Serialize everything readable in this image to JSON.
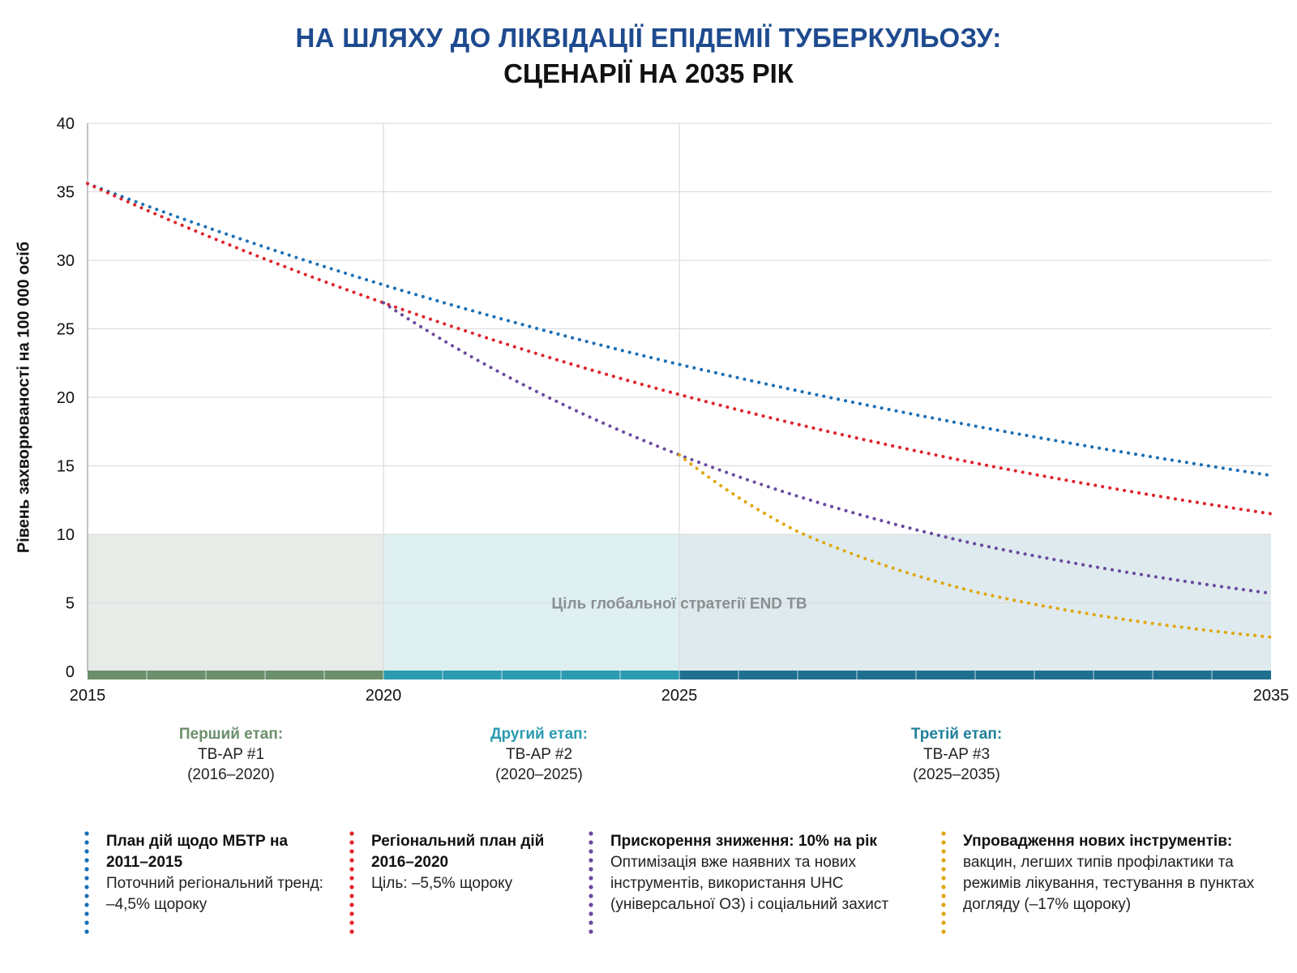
{
  "title": {
    "line1": "НА ШЛЯХУ ДО ЛІКВІДАЦІЇ ЕПІДЕМІЇ ТУБЕРКУЛЬОЗУ:",
    "line2": "СЦЕНАРІЇ НА 2035 РІК"
  },
  "colors": {
    "blue": "#1a6fb5",
    "red": "#e0232b",
    "purple": "#6a4a9e",
    "gold": "#e0a60f",
    "phase1": "#6b8f6b",
    "phase2": "#2a9bb0",
    "phase3": "#1f6f8f",
    "title_blue": "#1e4b8f"
  },
  "chart_data": {
    "type": "line",
    "ylabel": "Рівень захворюваності на 100 000 осіб",
    "xlabel": "",
    "xlim": [
      2015,
      2035
    ],
    "ylim": [
      0,
      40
    ],
    "x_ticks": [
      2015,
      2020,
      2025,
      2035
    ],
    "y_ticks": [
      0,
      5,
      10,
      15,
      20,
      25,
      30,
      35,
      40
    ],
    "grid": true,
    "target_band": {
      "y_from": 0,
      "y_to": 10,
      "label": "Ціль глобальної стратегії END TB"
    },
    "series": [
      {
        "name": "План дій щодо МБТР на 2011–2015",
        "color_key": "blue",
        "x": [
          2015,
          2020,
          2025,
          2030,
          2035
        ],
        "y": [
          35.6,
          28.2,
          22.4,
          17.9,
          14.3
        ]
      },
      {
        "name": "Регіональний план дій 2016–2020",
        "color_key": "red",
        "x": [
          2015,
          2020,
          2025,
          2030,
          2035
        ],
        "y": [
          35.6,
          26.9,
          20.2,
          15.2,
          11.5
        ]
      },
      {
        "name": "Прискорення зниження: 10% на рік",
        "color_key": "purple",
        "x": [
          2020,
          2025,
          2030,
          2035
        ],
        "y": [
          26.9,
          15.8,
          9.3,
          5.7
        ]
      },
      {
        "name": "Упровадження нових інструментів",
        "color_key": "gold",
        "x": [
          2025,
          2027,
          2030,
          2033,
          2035
        ],
        "y": [
          15.8,
          10.2,
          5.8,
          3.5,
          2.5
        ]
      }
    ]
  },
  "phases": [
    {
      "title": "Перший етап:",
      "plan": "TB-AP #1",
      "years": "(2016–2020)",
      "color_key": "phase1"
    },
    {
      "title": "Другий етап:",
      "plan": "TB-AP #2",
      "years": "(2020–2025)",
      "color_key": "phase2"
    },
    {
      "title": "Третій етап:",
      "plan": "TB-AP #3",
      "years": "(2025–2035)",
      "color_key": "phase3"
    }
  ],
  "legend": [
    {
      "title": "План дій щодо МБТР на 2011–2015",
      "text": "Поточний регіональний тренд: –4,5% щороку",
      "color_key": "blue"
    },
    {
      "title": "Регіональний план дій 2016–2020",
      "text": "Ціль: –5,5% щороку",
      "color_key": "red"
    },
    {
      "title": "Прискорення зниження: 10% на рік",
      "text": "Оптимізація вже наявних та нових інструментів, використання UHC (універсальної ОЗ) і соціальний захист",
      "color_key": "purple"
    },
    {
      "title": "Упровадження нових інструментів:",
      "text": "вакцин, легших типів профілактики та режимів лікування, тестування в пунктах догляду (–17% щороку)",
      "color_key": "gold"
    }
  ]
}
